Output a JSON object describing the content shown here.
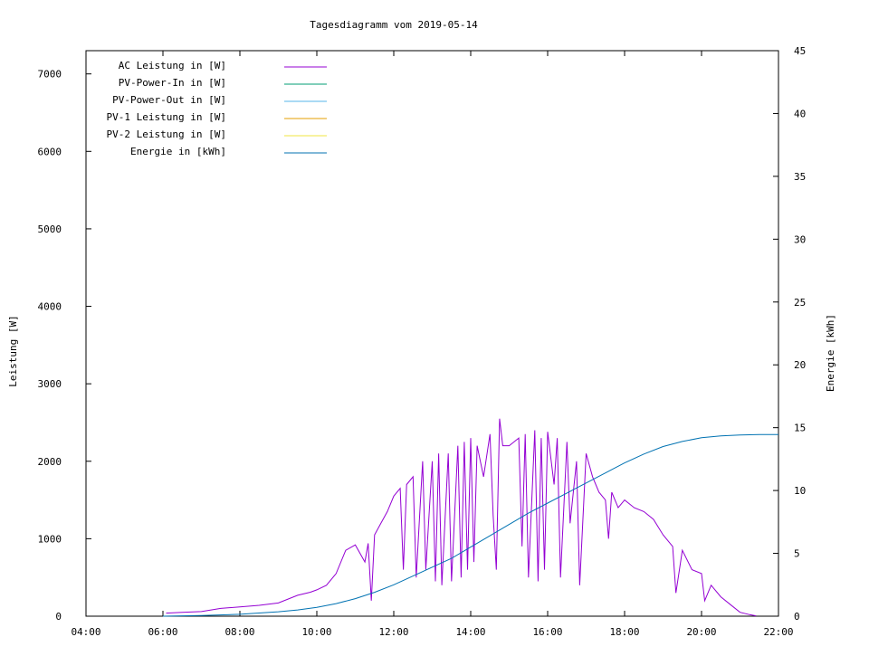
{
  "chart_data": {
    "type": "line",
    "title": "Tagesdiagramm vom 2019-05-14",
    "xlabel": "",
    "ylabel": "Leistung [W]",
    "y2label": "Energie [kWh]",
    "xlim": [
      "04:00",
      "22:00"
    ],
    "ylim": [
      0,
      7300
    ],
    "y2lim": [
      0,
      45
    ],
    "x_ticks": [
      "04:00",
      "06:00",
      "08:00",
      "10:00",
      "12:00",
      "14:00",
      "16:00",
      "18:00",
      "20:00",
      "22:00"
    ],
    "y_ticks": [
      0,
      1000,
      2000,
      3000,
      4000,
      5000,
      6000,
      7000
    ],
    "y2_ticks": [
      0,
      5,
      10,
      15,
      20,
      25,
      30,
      35,
      40,
      45
    ],
    "grid": false,
    "legend_position": "top-left",
    "series": [
      {
        "name": "AC Leistung in [W]",
        "axis": "left",
        "color": "#9400d3",
        "points": [
          [
            "06:05",
            40
          ],
          [
            "06:30",
            50
          ],
          [
            "07:00",
            60
          ],
          [
            "07:30",
            100
          ],
          [
            "08:00",
            120
          ],
          [
            "08:30",
            140
          ],
          [
            "09:00",
            170
          ],
          [
            "09:30",
            270
          ],
          [
            "09:50",
            310
          ],
          [
            "10:00",
            340
          ],
          [
            "10:15",
            400
          ],
          [
            "10:30",
            550
          ],
          [
            "10:45",
            850
          ],
          [
            "11:00",
            920
          ],
          [
            "11:15",
            700
          ],
          [
            "11:20",
            940
          ],
          [
            "11:25",
            200
          ],
          [
            "11:30",
            1050
          ],
          [
            "11:40",
            1200
          ],
          [
            "11:50",
            1350
          ],
          [
            "12:00",
            1550
          ],
          [
            "12:10",
            1650
          ],
          [
            "12:15",
            600
          ],
          [
            "12:20",
            1700
          ],
          [
            "12:30",
            1800
          ],
          [
            "12:35",
            500
          ],
          [
            "12:45",
            2000
          ],
          [
            "12:50",
            600
          ],
          [
            "13:00",
            2000
          ],
          [
            "13:05",
            450
          ],
          [
            "13:10",
            2100
          ],
          [
            "13:15",
            400
          ],
          [
            "13:25",
            2100
          ],
          [
            "13:30",
            450
          ],
          [
            "13:40",
            2200
          ],
          [
            "13:45",
            500
          ],
          [
            "13:50",
            2250
          ],
          [
            "13:55",
            600
          ],
          [
            "14:00",
            2300
          ],
          [
            "14:05",
            700
          ],
          [
            "14:10",
            2200
          ],
          [
            "14:20",
            1800
          ],
          [
            "14:30",
            2350
          ],
          [
            "14:35",
            1300
          ],
          [
            "14:40",
            600
          ],
          [
            "14:45",
            2550
          ],
          [
            "14:50",
            2200
          ],
          [
            "15:00",
            2200
          ],
          [
            "15:15",
            2300
          ],
          [
            "15:20",
            900
          ],
          [
            "15:25",
            2350
          ],
          [
            "15:30",
            500
          ],
          [
            "15:40",
            2400
          ],
          [
            "15:45",
            450
          ],
          [
            "15:50",
            2300
          ],
          [
            "15:55",
            600
          ],
          [
            "16:00",
            2380
          ],
          [
            "16:10",
            1700
          ],
          [
            "16:15",
            2300
          ],
          [
            "16:20",
            500
          ],
          [
            "16:30",
            2250
          ],
          [
            "16:35",
            1200
          ],
          [
            "16:45",
            2000
          ],
          [
            "16:50",
            400
          ],
          [
            "17:00",
            2100
          ],
          [
            "17:10",
            1800
          ],
          [
            "17:20",
            1600
          ],
          [
            "17:30",
            1500
          ],
          [
            "17:35",
            1000
          ],
          [
            "17:40",
            1600
          ],
          [
            "17:50",
            1400
          ],
          [
            "18:00",
            1500
          ],
          [
            "18:15",
            1400
          ],
          [
            "18:30",
            1350
          ],
          [
            "18:45",
            1250
          ],
          [
            "19:00",
            1050
          ],
          [
            "19:15",
            900
          ],
          [
            "19:20",
            300
          ],
          [
            "19:30",
            850
          ],
          [
            "19:45",
            600
          ],
          [
            "20:00",
            550
          ],
          [
            "20:05",
            200
          ],
          [
            "20:15",
            400
          ],
          [
            "20:30",
            250
          ],
          [
            "20:45",
            150
          ],
          [
            "21:00",
            50
          ],
          [
            "21:15",
            20
          ],
          [
            "21:25",
            5
          ]
        ]
      },
      {
        "name": "PV-Power-In in [W]",
        "axis": "left",
        "color": "#009e73",
        "points": []
      },
      {
        "name": "PV-Power-Out in [W]",
        "axis": "left",
        "color": "#56b4e9",
        "points": []
      },
      {
        "name": "PV-1 Leistung in [W]",
        "axis": "left",
        "color": "#e69f00",
        "points": []
      },
      {
        "name": "PV-2 Leistung in [W]",
        "axis": "left",
        "color": "#f0e442",
        "points": []
      },
      {
        "name": "Energie in [kWh]",
        "axis": "right",
        "color": "#0072b2",
        "points": [
          [
            "06:00",
            0
          ],
          [
            "07:00",
            0.05
          ],
          [
            "08:00",
            0.15
          ],
          [
            "09:00",
            0.35
          ],
          [
            "09:30",
            0.5
          ],
          [
            "10:00",
            0.7
          ],
          [
            "10:30",
            1.0
          ],
          [
            "11:00",
            1.4
          ],
          [
            "11:30",
            1.9
          ],
          [
            "12:00",
            2.5
          ],
          [
            "12:30",
            3.2
          ],
          [
            "13:00",
            3.9
          ],
          [
            "13:30",
            4.6
          ],
          [
            "14:00",
            5.5
          ],
          [
            "14:30",
            6.4
          ],
          [
            "15:00",
            7.3
          ],
          [
            "15:30",
            8.2
          ],
          [
            "16:00",
            9.0
          ],
          [
            "16:30",
            9.8
          ],
          [
            "17:00",
            10.6
          ],
          [
            "17:30",
            11.4
          ],
          [
            "18:00",
            12.2
          ],
          [
            "18:30",
            12.9
          ],
          [
            "19:00",
            13.5
          ],
          [
            "19:30",
            13.9
          ],
          [
            "20:00",
            14.2
          ],
          [
            "20:30",
            14.35
          ],
          [
            "21:00",
            14.42
          ],
          [
            "21:30",
            14.45
          ],
          [
            "22:00",
            14.45
          ]
        ]
      }
    ]
  }
}
